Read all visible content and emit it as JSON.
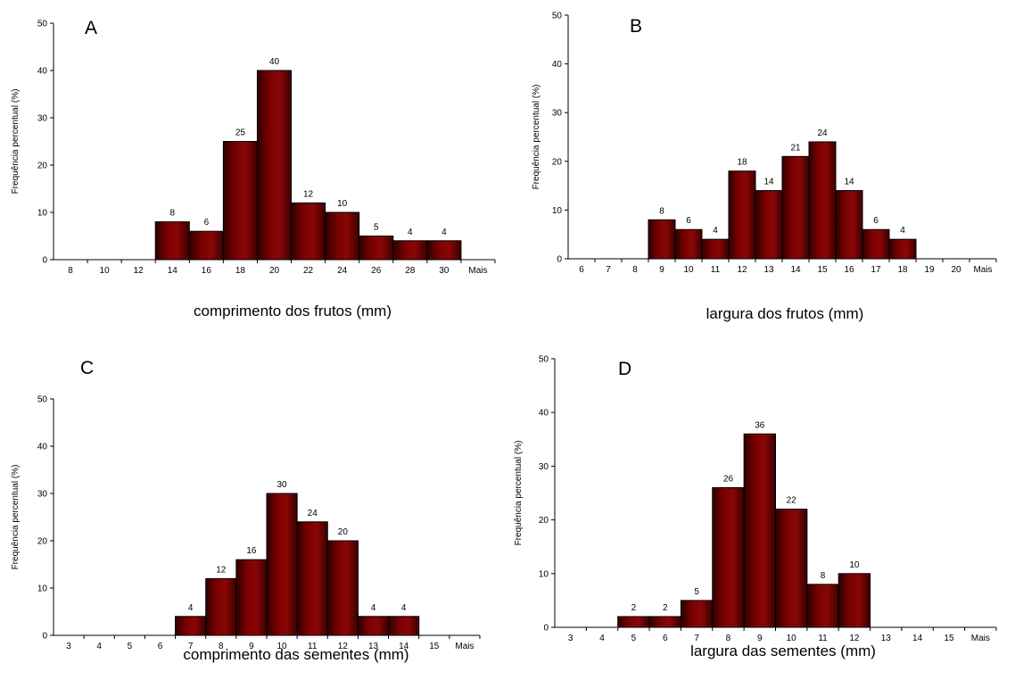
{
  "chart_data": [
    {
      "type": "bar",
      "panel": "A",
      "ylabel": "Frequência percentual (%)",
      "xlabel": "comprimento dos frutos (mm)",
      "ylim": [
        0,
        50
      ],
      "yticks": [
        "0",
        "10",
        "20",
        "30",
        "40",
        "50"
      ],
      "categories": [
        "8",
        "10",
        "12",
        "14",
        "16",
        "18",
        "20",
        "22",
        "24",
        "26",
        "28",
        "30",
        "Mais"
      ],
      "values": [
        0,
        0,
        0,
        8,
        6,
        25,
        40,
        12,
        10,
        5,
        4,
        4,
        0
      ],
      "labels": [
        "",
        "",
        "",
        "8",
        "6",
        "25",
        "40",
        "12",
        "10",
        "5",
        "4",
        "4",
        ""
      ],
      "bar_color": "#7a0000"
    },
    {
      "type": "bar",
      "panel": "B",
      "ylabel": "Frequência percentual (%)",
      "xlabel": "largura dos frutos (mm)",
      "ylim": [
        0,
        50
      ],
      "yticks": [
        "0",
        "10",
        "20",
        "30",
        "40",
        "50"
      ],
      "categories": [
        "6",
        "7",
        "8",
        "9",
        "10",
        "11",
        "12",
        "13",
        "14",
        "15",
        "16",
        "17",
        "18",
        "19",
        "20",
        "Mais"
      ],
      "values": [
        0,
        0,
        0,
        8,
        6,
        4,
        18,
        14,
        21,
        24,
        14,
        6,
        4,
        0,
        0,
        0
      ],
      "labels": [
        "",
        "",
        "",
        "8",
        "6",
        "4",
        "18",
        "14",
        "21",
        "24",
        "14",
        "6",
        "4",
        "",
        "",
        ""
      ],
      "bar_color": "#7a0000"
    },
    {
      "type": "bar",
      "panel": "C",
      "ylabel": "Frequência percentual (%)",
      "xlabel": "comprimento das sementes (mm)",
      "ylim": [
        0,
        50
      ],
      "yticks": [
        "0",
        "10",
        "20",
        "30",
        "40",
        "50"
      ],
      "categories": [
        "3",
        "4",
        "5",
        "6",
        "7",
        "8",
        "9",
        "10",
        "11",
        "12",
        "13",
        "14",
        "15",
        "Mais"
      ],
      "values": [
        0,
        0,
        0,
        0,
        4,
        12,
        16,
        30,
        24,
        20,
        4,
        4,
        0,
        0
      ],
      "labels": [
        "",
        "",
        "",
        "",
        "4",
        "12",
        "16",
        "30",
        "24",
        "20",
        "4",
        "4",
        "",
        ""
      ],
      "bar_color": "#7a0000"
    },
    {
      "type": "bar",
      "panel": "D",
      "ylabel": "Frequência percentual (%)",
      "xlabel": "largura das sementes (mm)",
      "ylim": [
        0,
        50
      ],
      "yticks": [
        "0",
        "10",
        "20",
        "30",
        "40",
        "50"
      ],
      "categories": [
        "3",
        "4",
        "5",
        "6",
        "7",
        "8",
        "9",
        "10",
        "11",
        "12",
        "13",
        "14",
        "15",
        "Mais"
      ],
      "values": [
        0,
        0,
        2,
        2,
        5,
        26,
        36,
        22,
        8,
        10,
        0,
        0,
        0,
        0
      ],
      "labels": [
        "",
        "",
        "2",
        "2",
        "5",
        "26",
        "36",
        "22",
        "8",
        "10",
        "",
        "",
        "",
        ""
      ],
      "bar_color": "#7a0000"
    }
  ]
}
